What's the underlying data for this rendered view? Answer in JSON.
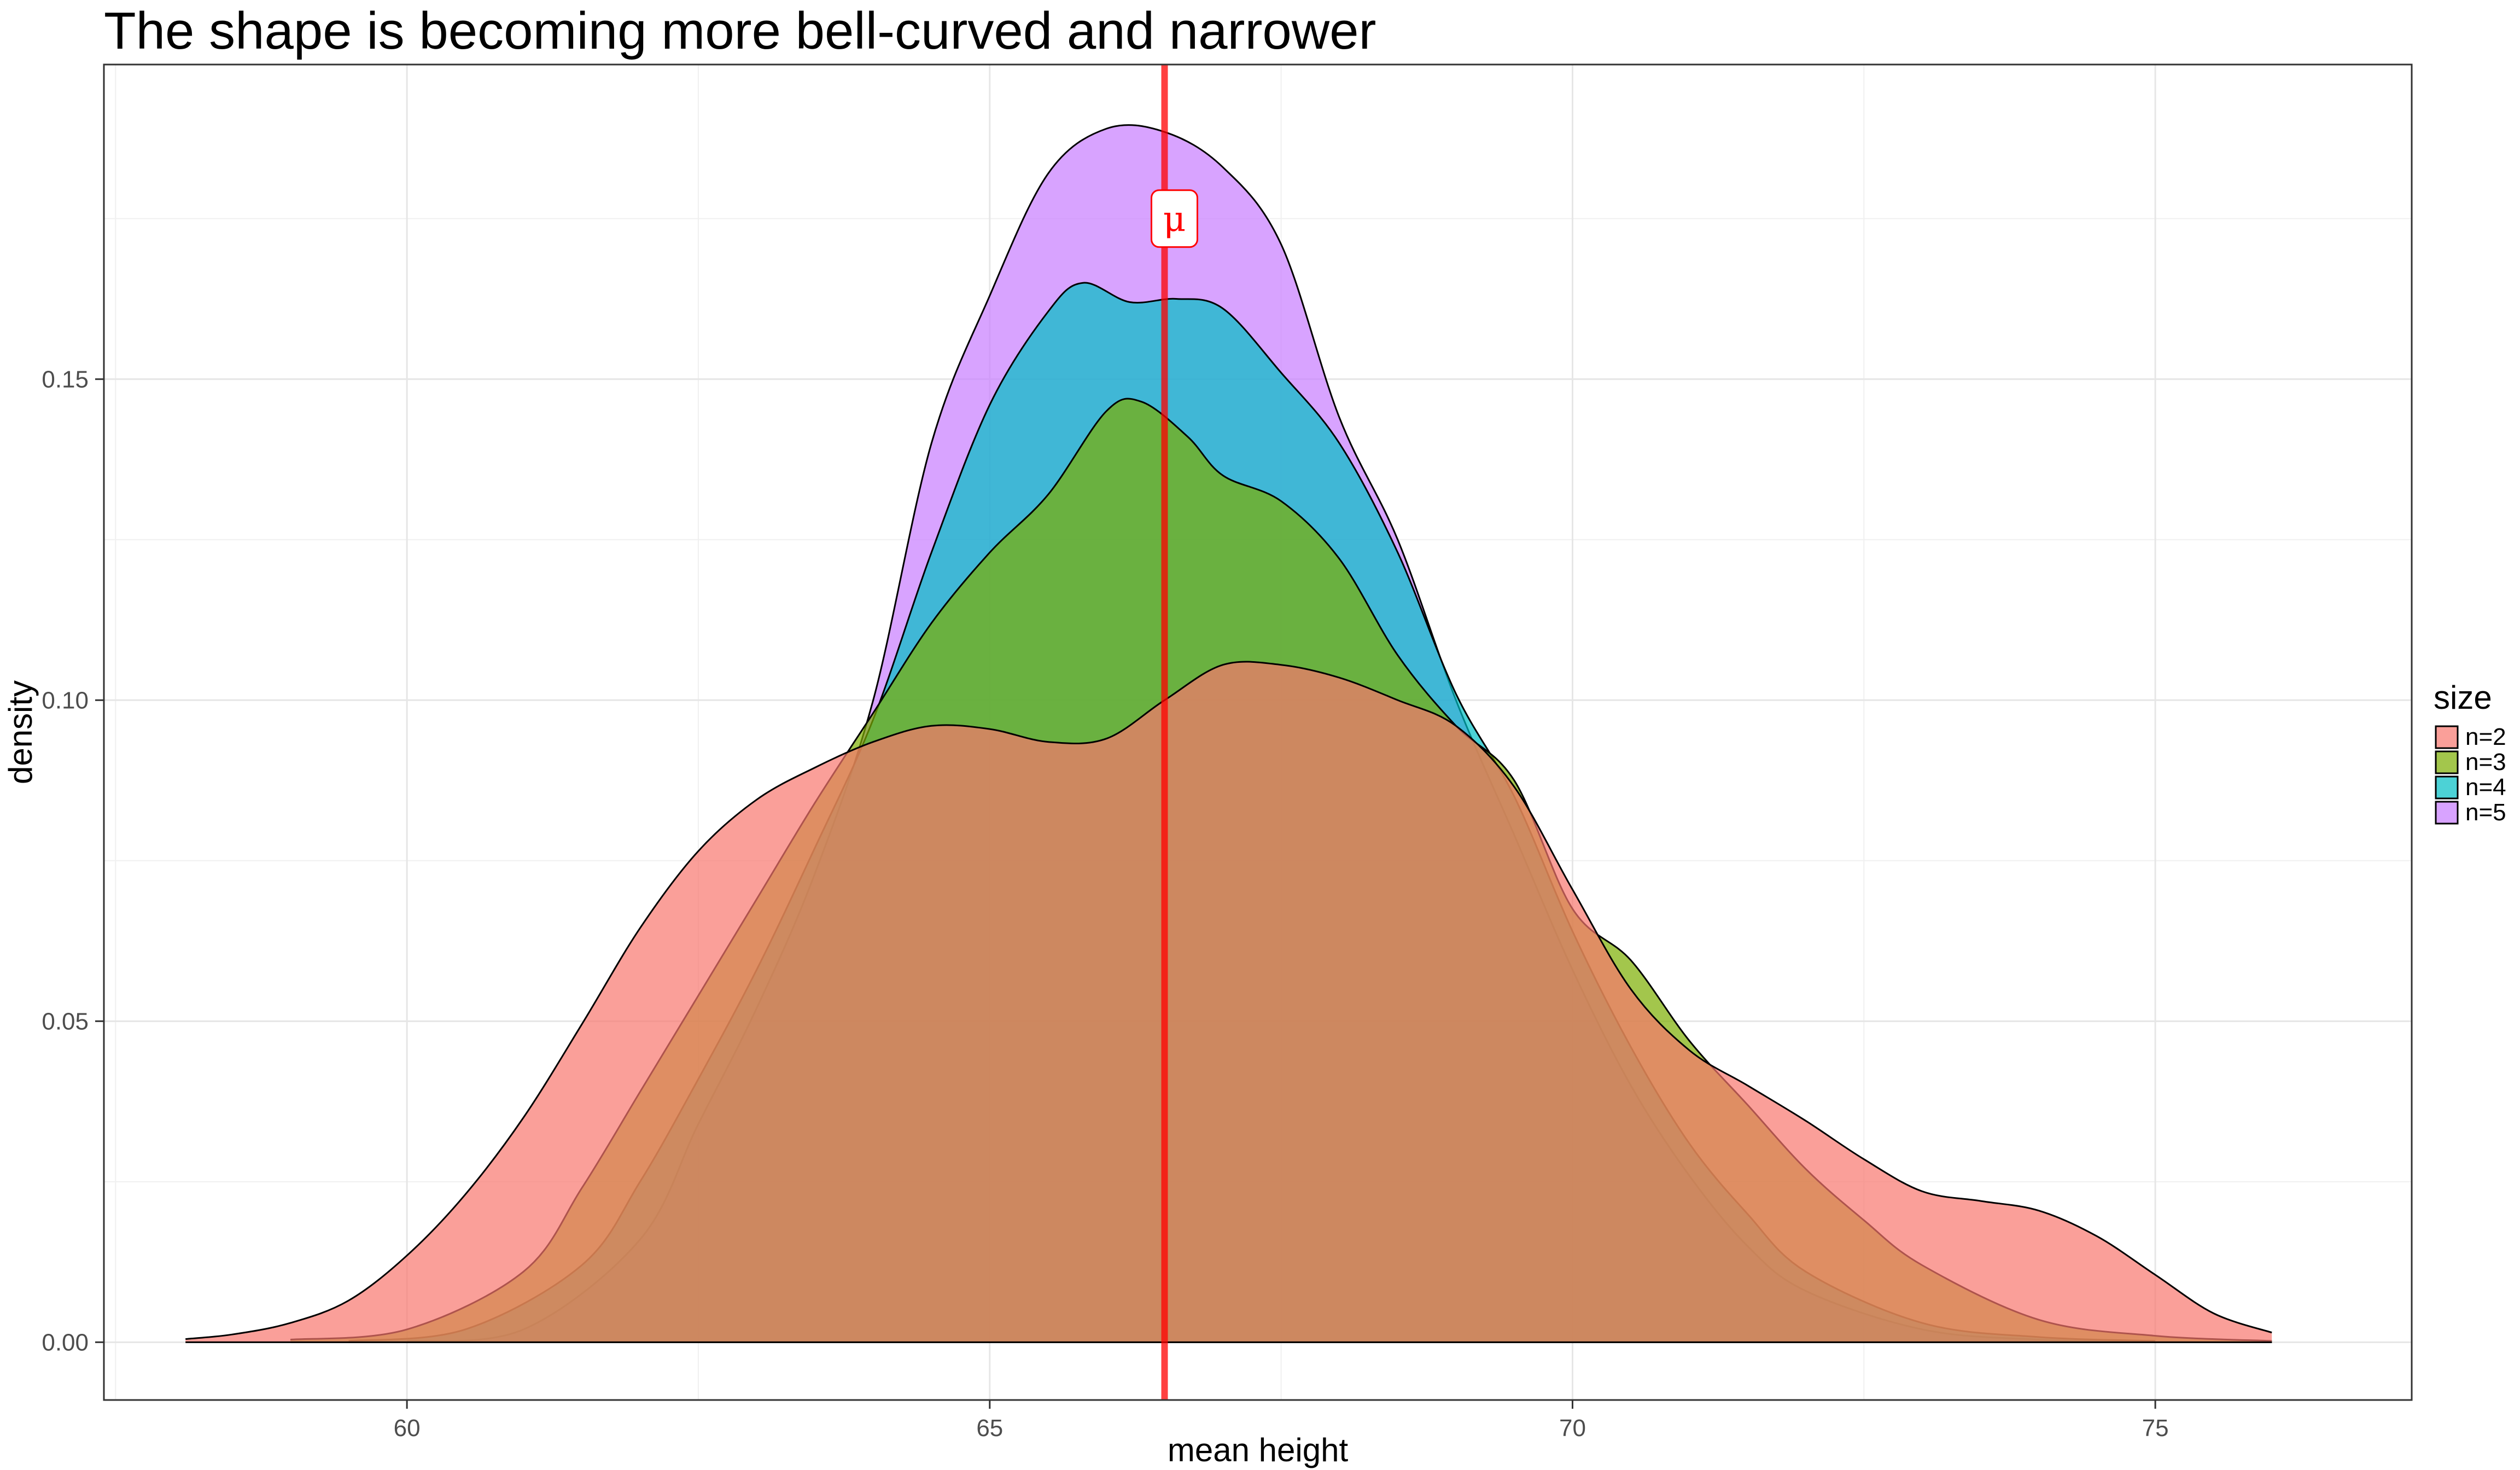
{
  "chart_data": {
    "type": "area",
    "title": "The shape is becoming more bell-curved and narrower",
    "xlabel": "mean height",
    "ylabel": "density",
    "xlim": [
      57.4,
      77.2
    ],
    "ylim": [
      -0.009,
      0.199
    ],
    "x_ticks": [
      60,
      65,
      70,
      75
    ],
    "x_tick_labels": [
      "60",
      "65",
      "70",
      "75"
    ],
    "y_ticks": [
      0,
      0.05,
      0.1,
      0.15
    ],
    "y_tick_labels": [
      "0.00",
      "0.05",
      "0.10",
      "0.15"
    ],
    "grid": true,
    "legend": {
      "title": "size",
      "position": "right"
    },
    "series": [
      {
        "name": "n=2",
        "color": "#F8766D",
        "points": [
          [
            58.1,
            0.0005
          ],
          [
            58.5,
            0.0012
          ],
          [
            59,
            0.003
          ],
          [
            59.5,
            0.0065
          ],
          [
            60,
            0.0135
          ],
          [
            60.5,
            0.023
          ],
          [
            61,
            0.035
          ],
          [
            61.5,
            0.0495
          ],
          [
            62,
            0.0645
          ],
          [
            62.5,
            0.0765
          ],
          [
            63,
            0.0845
          ],
          [
            63.5,
            0.0895
          ],
          [
            64,
            0.0935
          ],
          [
            64.5,
            0.096
          ],
          [
            65,
            0.0955
          ],
          [
            65.5,
            0.0935
          ],
          [
            66,
            0.094
          ],
          [
            66.5,
            0.1
          ],
          [
            67,
            0.1055
          ],
          [
            67.5,
            0.1055
          ],
          [
            68,
            0.1035
          ],
          [
            68.5,
            0.1
          ],
          [
            69,
            0.096
          ],
          [
            69.5,
            0.0865
          ],
          [
            70,
            0.0705
          ],
          [
            70.5,
            0.055
          ],
          [
            71,
            0.0455
          ],
          [
            71.5,
            0.04
          ],
          [
            72,
            0.0345
          ],
          [
            72.5,
            0.0285
          ],
          [
            73,
            0.0235
          ],
          [
            73.5,
            0.022
          ],
          [
            74,
            0.0205
          ],
          [
            74.5,
            0.0165
          ],
          [
            75,
            0.0105
          ],
          [
            75.5,
            0.0045
          ],
          [
            76,
            0.0015
          ]
        ]
      },
      {
        "name": "n=3",
        "color": "#7CAE00",
        "points": [
          [
            59,
            0.0004
          ],
          [
            60,
            0.002
          ],
          [
            61,
            0.011
          ],
          [
            61.5,
            0.024
          ],
          [
            62,
            0.039
          ],
          [
            62.5,
            0.054
          ],
          [
            63,
            0.069
          ],
          [
            63.5,
            0.084
          ],
          [
            64,
            0.098
          ],
          [
            64.5,
            0.112
          ],
          [
            65,
            0.123
          ],
          [
            65.5,
            0.132
          ],
          [
            66,
            0.145
          ],
          [
            66.3,
            0.1465
          ],
          [
            66.7,
            0.141
          ],
          [
            67,
            0.135
          ],
          [
            67.5,
            0.131
          ],
          [
            68,
            0.122
          ],
          [
            68.5,
            0.107
          ],
          [
            69,
            0.096
          ],
          [
            69.5,
            0.0875
          ],
          [
            70,
            0.0675
          ],
          [
            70.5,
            0.0595
          ],
          [
            71,
            0.047
          ],
          [
            71.5,
            0.037
          ],
          [
            72,
            0.027
          ],
          [
            72.5,
            0.019
          ],
          [
            73,
            0.012
          ],
          [
            74,
            0.0035
          ],
          [
            75,
            0.001
          ],
          [
            76,
            0.0002
          ]
        ]
      },
      {
        "name": "n=4",
        "color": "#00BFC4",
        "points": [
          [
            59.5,
            0.0002
          ],
          [
            60.5,
            0.002
          ],
          [
            61.5,
            0.012
          ],
          [
            62,
            0.025
          ],
          [
            62.5,
            0.041
          ],
          [
            63,
            0.058
          ],
          [
            63.5,
            0.077
          ],
          [
            64,
            0.097
          ],
          [
            64.5,
            0.123
          ],
          [
            65,
            0.146
          ],
          [
            65.5,
            0.1605
          ],
          [
            65.8,
            0.165
          ],
          [
            66.2,
            0.162
          ],
          [
            66.6,
            0.1625
          ],
          [
            67,
            0.161
          ],
          [
            67.5,
            0.151
          ],
          [
            68,
            0.14
          ],
          [
            68.5,
            0.123
          ],
          [
            69,
            0.101
          ],
          [
            69.5,
            0.085
          ],
          [
            70,
            0.064
          ],
          [
            70.5,
            0.046
          ],
          [
            71,
            0.031
          ],
          [
            71.5,
            0.02
          ],
          [
            72,
            0.011
          ],
          [
            73,
            0.003
          ],
          [
            74,
            0.0008
          ],
          [
            75,
            0.0002
          ]
        ]
      },
      {
        "name": "n=5",
        "color": "#C77CFF",
        "points": [
          [
            60,
            0.0002
          ],
          [
            61,
            0.002
          ],
          [
            62,
            0.016
          ],
          [
            62.5,
            0.034
          ],
          [
            63,
            0.052
          ],
          [
            63.5,
            0.073
          ],
          [
            64,
            0.1
          ],
          [
            64.5,
            0.14
          ],
          [
            65,
            0.163
          ],
          [
            65.5,
            0.182
          ],
          [
            66,
            0.189
          ],
          [
            66.5,
            0.1885
          ],
          [
            67,
            0.183
          ],
          [
            67.5,
            0.171
          ],
          [
            68,
            0.144
          ],
          [
            68.5,
            0.125
          ],
          [
            69,
            0.1
          ],
          [
            69.5,
            0.079
          ],
          [
            70,
            0.058
          ],
          [
            70.5,
            0.04
          ],
          [
            71,
            0.026
          ],
          [
            71.5,
            0.015
          ],
          [
            72,
            0.008
          ],
          [
            73,
            0.002
          ],
          [
            74,
            0.0004
          ],
          [
            75,
            0.0001
          ]
        ]
      }
    ],
    "reference_line": {
      "x": 66.5,
      "color": "#FF0000",
      "label": "μ",
      "label_y": 0.175
    }
  }
}
